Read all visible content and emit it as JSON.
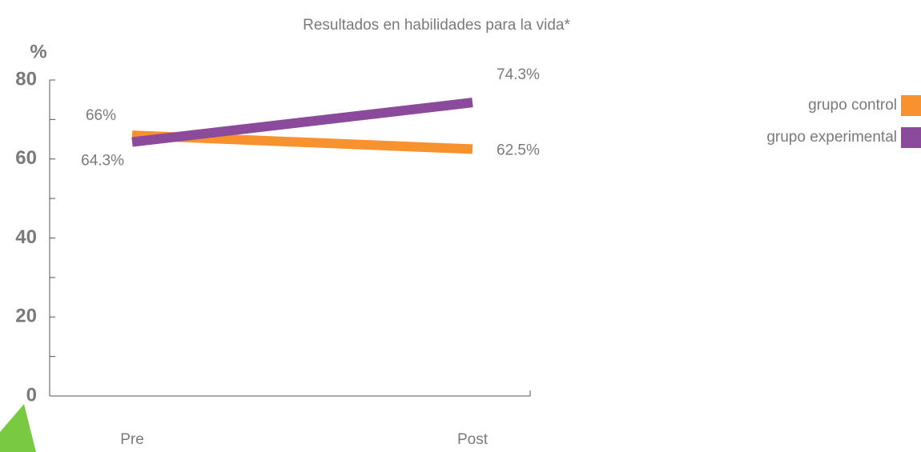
{
  "chart_data": {
    "type": "line",
    "title": "Resultados en habilidades para la vida*",
    "y_label": "%",
    "categories": [
      "Pre",
      "Post"
    ],
    "series": [
      {
        "name": "grupo control",
        "color": "#f7922f",
        "values": [
          66,
          62.5
        ],
        "value_labels": [
          "66%",
          "62.5%"
        ]
      },
      {
        "name": "grupo experimental",
        "color": "#8b4a9c",
        "values": [
          64.3,
          74.3
        ],
        "value_labels": [
          "64.3%",
          "74.3%"
        ]
      }
    ],
    "ylim": [
      0,
      80
    ],
    "yticks": [
      0,
      20,
      40,
      60,
      80
    ],
    "yminorticks": [
      10,
      30,
      50,
      70
    ],
    "legend": "right"
  }
}
